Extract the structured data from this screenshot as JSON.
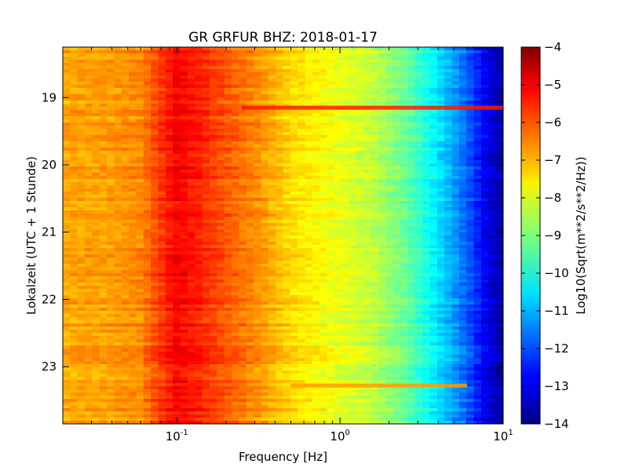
{
  "chart_data": {
    "type": "heatmap",
    "title": "GR GRFUR BHZ: 2018-01-17",
    "xlabel": "Frequency [Hz]",
    "ylabel": "Lokalzeit (UTC + 1 Stunde)",
    "x_scale": "log",
    "x_range": [
      0.02,
      10
    ],
    "x_ticks": [
      {
        "value": 0.1,
        "base": "10",
        "exp": "-1"
      },
      {
        "value": 1,
        "base": "10",
        "exp": "0"
      },
      {
        "value": 10,
        "base": "10",
        "exp": "1"
      }
    ],
    "y_range": [
      18.25,
      23.85
    ],
    "y_inverted": true,
    "y_ticks": [
      "19",
      "20",
      "21",
      "22",
      "23"
    ],
    "colorbar": {
      "label": "Log10(Sqrt(m**2/s**2/Hz))",
      "min": -14,
      "max": -4,
      "ticks": [
        "-4",
        "-5",
        "-6",
        "-7",
        "-8",
        "-9",
        "-10",
        "-11",
        "-12",
        "-13",
        "-14"
      ],
      "colormap": "jet"
    },
    "spectrum_profile": [
      {
        "freq": 0.02,
        "value": -6.9
      },
      {
        "freq": 0.04,
        "value": -6.8
      },
      {
        "freq": 0.06,
        "value": -6.6
      },
      {
        "freq": 0.08,
        "value": -5.8
      },
      {
        "freq": 0.1,
        "value": -5.2
      },
      {
        "freq": 0.14,
        "value": -5.6
      },
      {
        "freq": 0.2,
        "value": -6.1
      },
      {
        "freq": 0.3,
        "value": -6.6
      },
      {
        "freq": 0.5,
        "value": -7.4
      },
      {
        "freq": 0.8,
        "value": -7.8
      },
      {
        "freq": 1.5,
        "value": -8.3
      },
      {
        "freq": 2.5,
        "value": -9.2
      },
      {
        "freq": 4,
        "value": -10.5
      },
      {
        "freq": 6,
        "value": -11.8
      },
      {
        "freq": 8,
        "value": -13.0
      },
      {
        "freq": 10,
        "value": -13.7
      }
    ],
    "features": [
      {
        "type": "narrow-band line",
        "time": 19.15,
        "freq_from": 0.25,
        "freq_to": 10,
        "value": -5.5
      },
      {
        "type": "narrow-band line",
        "time": 23.28,
        "freq_from": 0.5,
        "freq_to": 6,
        "value": -6.8
      }
    ]
  }
}
